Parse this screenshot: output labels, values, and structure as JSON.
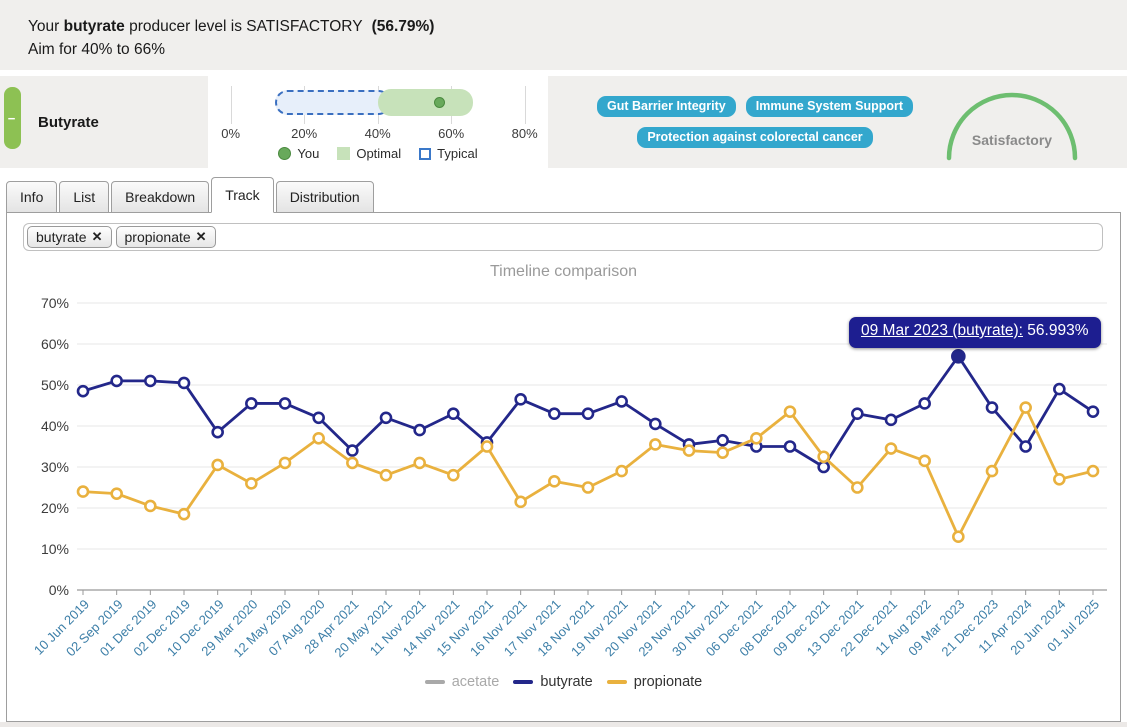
{
  "banner": {
    "prefix": "Your ",
    "substance": "butyrate",
    "middle": " producer level is SATISFACTORY ",
    "value": "(56.79%)",
    "aim": "Aim for 40% to 66%"
  },
  "summary": {
    "collapse_symbol": "−",
    "substance_label": "Butyrate",
    "scale": {
      "axis_min": 0,
      "axis_max": 80,
      "tick_labels": [
        "0%",
        "20%",
        "40%",
        "60%",
        "80%"
      ],
      "you_value": 56.79,
      "optimal_range": [
        40,
        66
      ],
      "typical_range": [
        12,
        43.5
      ],
      "legend": [
        {
          "label": "You",
          "swatch": "green-dot"
        },
        {
          "label": "Optimal",
          "swatch": "green-square"
        },
        {
          "label": "Typical",
          "swatch": "blue-outline-square"
        }
      ]
    },
    "badges": [
      "Gut Barrier Integrity",
      "Immune System Support",
      "Protection against colorectal cancer"
    ],
    "gauge": {
      "label": "Satisfactory",
      "color": "#6dbe70"
    }
  },
  "tabs": {
    "items": [
      "Info",
      "List",
      "Breakdown",
      "Track",
      "Distribution"
    ],
    "active": "Track"
  },
  "filters": [
    {
      "label": "butyrate",
      "close": "✕"
    },
    {
      "label": "propionate",
      "close": "✕"
    }
  ],
  "colors": {
    "badge": "#33a7cd",
    "tag_green": "#8dc153",
    "xlabel": "#3d7fa8",
    "tooltip_bg": "#1d1e90",
    "grid": "#e7e7e7",
    "axis": "#999999"
  },
  "chart_data": {
    "type": "line",
    "title": "Timeline comparison",
    "xlabel": "",
    "ylabel": "",
    "ylim": [
      0,
      70
    ],
    "ytick_step": 10,
    "ytick_suffix": "%",
    "grid": true,
    "legend_position": "bottom",
    "categories": [
      "10 Jun 2019",
      "02 Sep 2019",
      "01 Dec 2019",
      "02 Dec 2019",
      "10 Dec 2019",
      "29 Mar 2020",
      "12 May 2020",
      "07 Aug 2020",
      "28 Apr 2021",
      "20 May 2021",
      "11 Nov 2021",
      "14 Nov 2021",
      "15 Nov 2021",
      "16 Nov 2021",
      "17 Nov 2021",
      "18 Nov 2021",
      "19 Nov 2021",
      "20 Nov 2021",
      "29 Nov 2021",
      "30 Nov 2021",
      "06 Dec 2021",
      "08 Dec 2021",
      "09 Dec 2021",
      "13 Dec 2021",
      "22 Dec 2021",
      "11 Aug 2022",
      "09 Mar 2023",
      "21 Dec 2023",
      "11 Apr 2024",
      "20 Jun 2024",
      "01 Jul 2025"
    ],
    "series": [
      {
        "name": "acetate",
        "color": "#a9a9a9",
        "visible": false,
        "values": []
      },
      {
        "name": "butyrate",
        "color": "#23278a",
        "visible": true,
        "values": [
          48.5,
          51,
          51,
          50.5,
          38.5,
          45.5,
          45.5,
          42,
          34,
          42,
          39,
          43,
          36,
          46.5,
          43,
          43,
          46,
          40.5,
          35.5,
          36.5,
          35,
          35,
          30,
          43,
          41.5,
          45.5,
          56.993,
          44.5,
          35,
          49,
          43.5
        ]
      },
      {
        "name": "propionate",
        "color": "#e9b13e",
        "visible": true,
        "values": [
          24,
          23.5,
          20.5,
          18.5,
          30.5,
          26,
          31,
          37,
          31,
          28,
          31,
          28,
          35,
          21.5,
          26.5,
          25,
          29,
          35.5,
          34,
          33.5,
          37,
          43.5,
          32.5,
          25,
          34.5,
          31.5,
          13,
          29,
          44.5,
          27,
          29
        ]
      }
    ],
    "tooltip": {
      "series": "butyrate",
      "category": "09 Mar 2023",
      "label": "09 Mar 2023 (butyrate):",
      "value": "56.993%",
      "point_index": 26
    }
  }
}
